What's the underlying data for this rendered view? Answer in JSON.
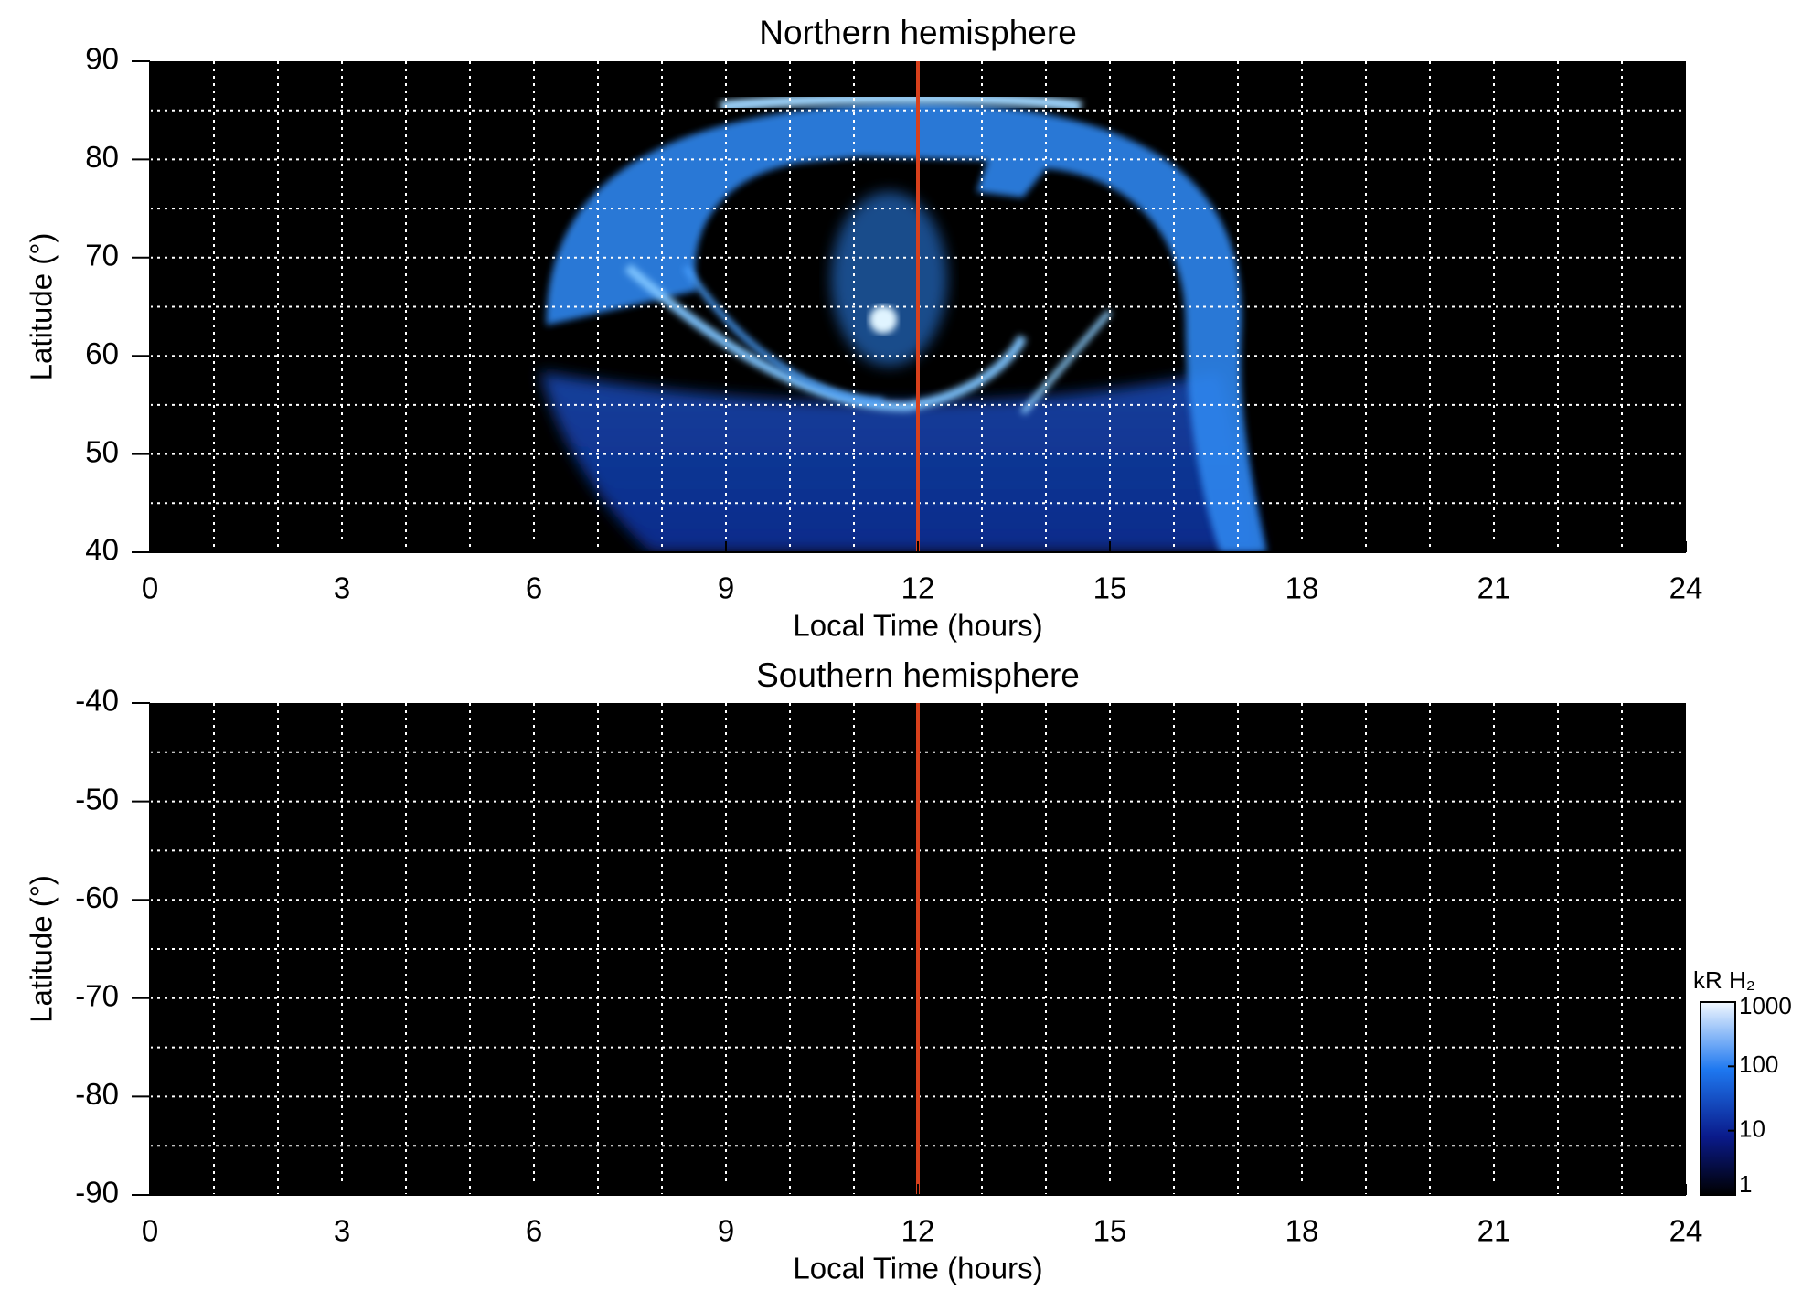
{
  "chart_data": [
    {
      "type": "heatmap",
      "title": "Northern hemisphere",
      "xlabel": "Local Time (hours)",
      "ylabel": "Latitude (°)",
      "xlim": [
        0,
        24
      ],
      "ylim": [
        40,
        90
      ],
      "xticks": [
        0,
        3,
        6,
        9,
        12,
        15,
        18,
        21,
        24
      ],
      "yticks": [
        40,
        50,
        60,
        70,
        80,
        90
      ],
      "x_gridlines": [
        1,
        2,
        3,
        4,
        5,
        6,
        7,
        8,
        9,
        10,
        11,
        12,
        13,
        14,
        15,
        16,
        17,
        18,
        19,
        20,
        21,
        22,
        23
      ],
      "y_gridlines": [
        45,
        50,
        55,
        60,
        65,
        70,
        75,
        80,
        85
      ],
      "reference_line": {
        "x": 12,
        "color": "#d8401c"
      }
    },
    {
      "type": "heatmap",
      "title": "Southern hemisphere",
      "xlabel": "Local Time (hours)",
      "ylabel": "Latitude (°)",
      "xlim": [
        0,
        24
      ],
      "ylim": [
        -90,
        -40
      ],
      "xticks": [
        0,
        3,
        6,
        9,
        12,
        15,
        18,
        21,
        24
      ],
      "yticks": [
        -90,
        -80,
        -70,
        -60,
        -50,
        -40
      ],
      "x_gridlines": [
        1,
        2,
        3,
        4,
        5,
        6,
        7,
        8,
        9,
        10,
        11,
        12,
        13,
        14,
        15,
        16,
        17,
        18,
        19,
        20,
        21,
        22,
        23
      ],
      "y_gridlines": [
        -85,
        -80,
        -75,
        -70,
        -65,
        -60,
        -55,
        -50,
        -45
      ],
      "reference_line": {
        "x": 12,
        "color": "#d8401c"
      },
      "colorbar": {
        "label": "kR H₂",
        "scale": "log",
        "lim": [
          1,
          1000
        ],
        "ticks": [
          1,
          10,
          100,
          1000
        ]
      }
    }
  ]
}
